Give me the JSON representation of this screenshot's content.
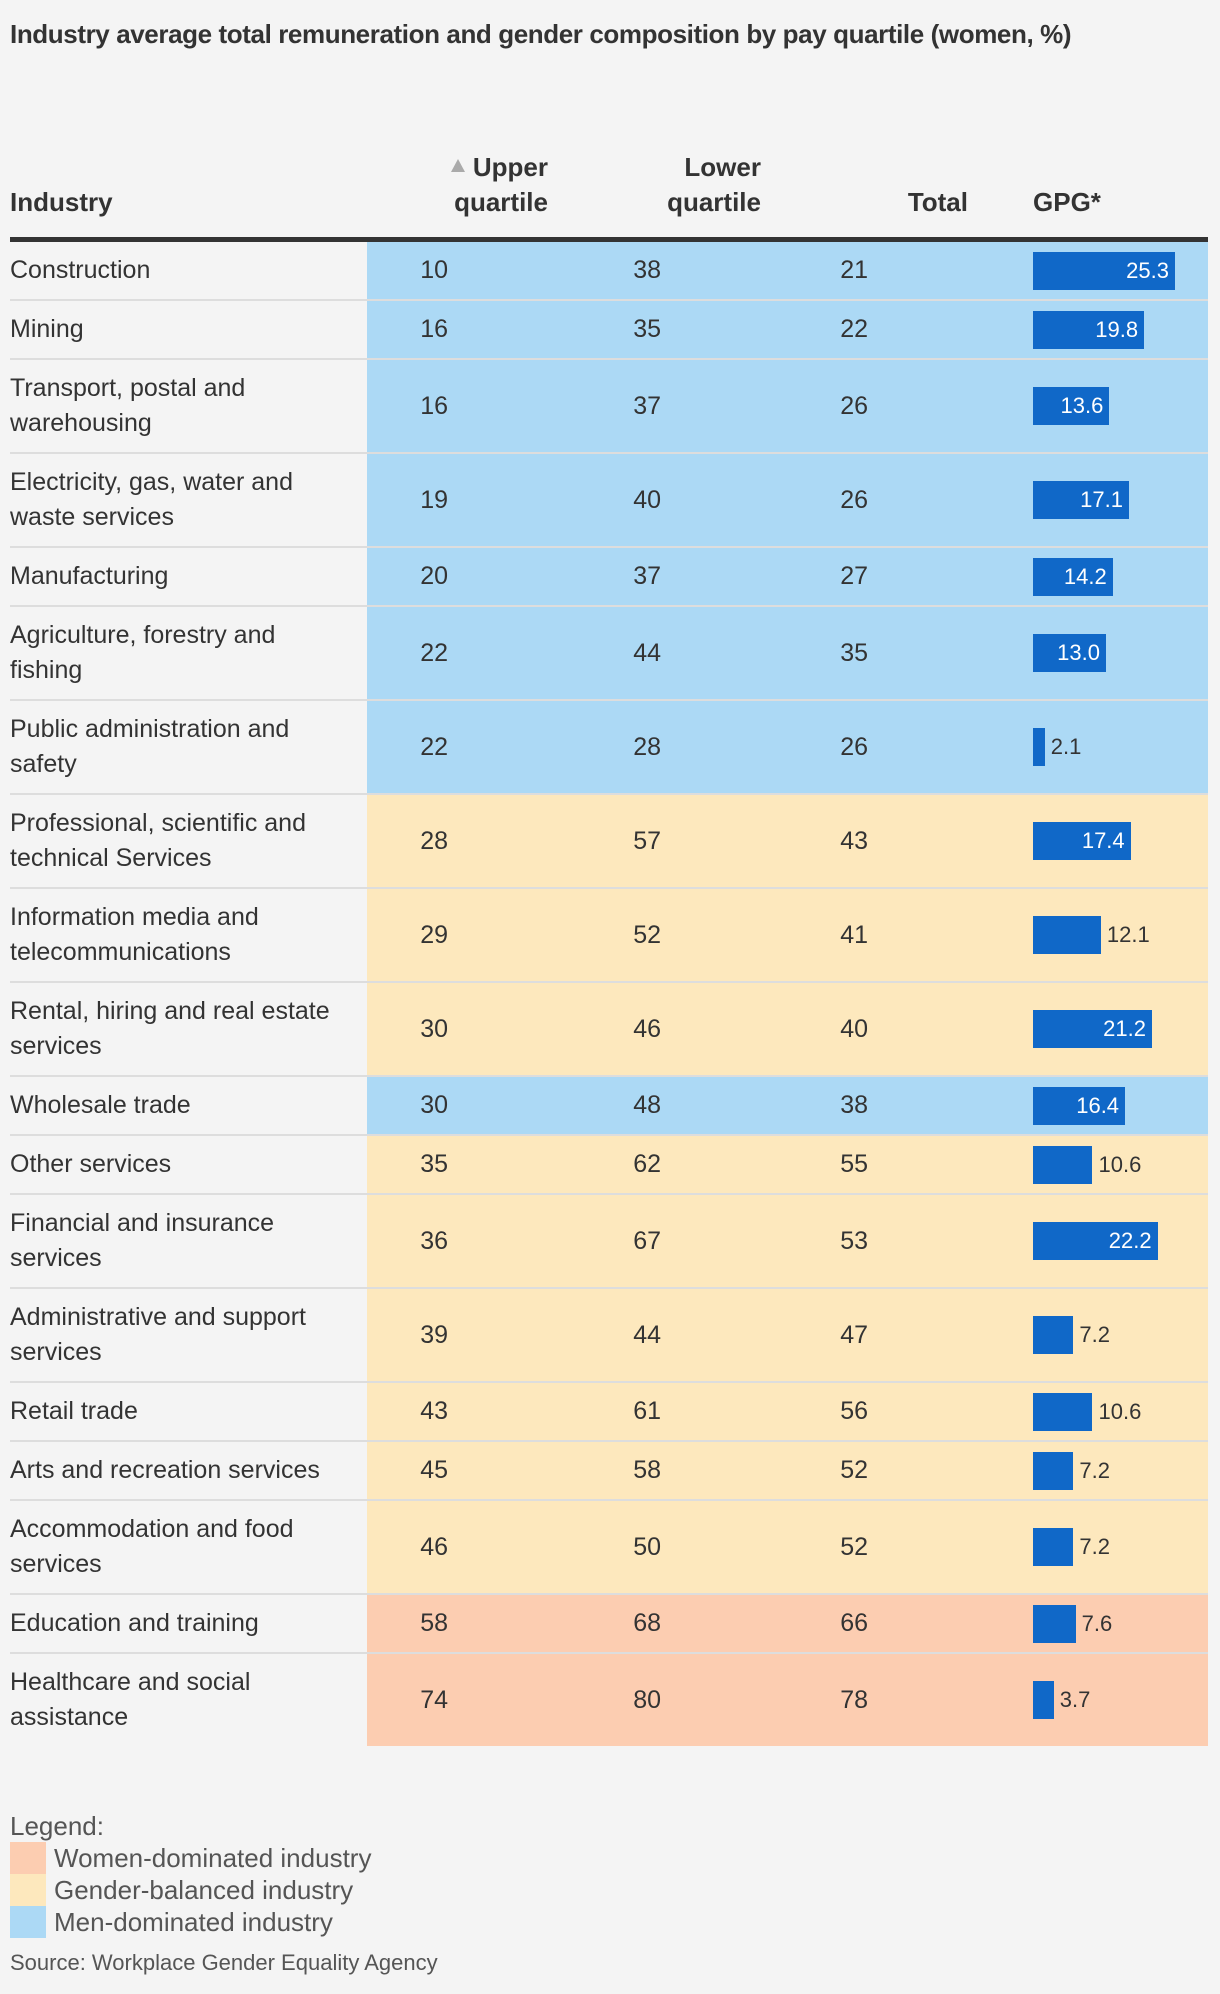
{
  "title": "Industry average total remuneration and gender composition by pay quartile (women, %)",
  "headers": {
    "industry": "Industry",
    "upper_line1": "Upper",
    "upper_line2": "quartile",
    "lower_line1": "Lower",
    "lower_line2": "quartile",
    "total": "Total",
    "gpg": "GPG*"
  },
  "sort": {
    "column": "Upper quartile",
    "direction": "ascending",
    "icon": "sort-ascending-icon"
  },
  "colors": {
    "women": "#fccdb1",
    "balanced": "#fde8bd",
    "men": "#acd9f5",
    "bar": "#1068c8"
  },
  "chart_data": {
    "type": "table",
    "title": "Industry average total remuneration and gender composition by pay quartile (women, %)",
    "columns": [
      "Industry",
      "Upper quartile",
      "Lower quartile",
      "Total",
      "GPG*"
    ],
    "gpg_bar_max": 25.3,
    "rows": [
      {
        "industry": "Construction",
        "upper": "10",
        "lower": "38",
        "total": "21",
        "gpg": "25.3",
        "category": "men"
      },
      {
        "industry": "Mining",
        "upper": "16",
        "lower": "35",
        "total": "22",
        "gpg": "19.8",
        "category": "men"
      },
      {
        "industry": "Transport, postal and warehousing",
        "upper": "16",
        "lower": "37",
        "total": "26",
        "gpg": "13.6",
        "category": "men"
      },
      {
        "industry": "Electricity, gas, water and waste services",
        "upper": "19",
        "lower": "40",
        "total": "26",
        "gpg": "17.1",
        "category": "men"
      },
      {
        "industry": "Manufacturing",
        "upper": "20",
        "lower": "37",
        "total": "27",
        "gpg": "14.2",
        "category": "men"
      },
      {
        "industry": "Agriculture, forestry and fishing",
        "upper": "22",
        "lower": "44",
        "total": "35",
        "gpg": "13.0",
        "category": "men"
      },
      {
        "industry": "Public administration and safety",
        "upper": "22",
        "lower": "28",
        "total": "26",
        "gpg": "2.1",
        "category": "men"
      },
      {
        "industry": "Professional, scientific and technical Services",
        "upper": "28",
        "lower": "57",
        "total": "43",
        "gpg": "17.4",
        "category": "balanced"
      },
      {
        "industry": "Information media and telecommunications",
        "upper": "29",
        "lower": "52",
        "total": "41",
        "gpg": "12.1",
        "category": "balanced"
      },
      {
        "industry": "Rental, hiring and real estate services",
        "upper": "30",
        "lower": "46",
        "total": "40",
        "gpg": "21.2",
        "category": "balanced"
      },
      {
        "industry": "Wholesale trade",
        "upper": "30",
        "lower": "48",
        "total": "38",
        "gpg": "16.4",
        "category": "men"
      },
      {
        "industry": "Other services",
        "upper": "35",
        "lower": "62",
        "total": "55",
        "gpg": "10.6",
        "category": "balanced"
      },
      {
        "industry": "Financial and insurance services",
        "upper": "36",
        "lower": "67",
        "total": "53",
        "gpg": "22.2",
        "category": "balanced"
      },
      {
        "industry": "Administrative and support services",
        "upper": "39",
        "lower": "44",
        "total": "47",
        "gpg": "7.2",
        "category": "balanced"
      },
      {
        "industry": "Retail trade",
        "upper": "43",
        "lower": "61",
        "total": "56",
        "gpg": "10.6",
        "category": "balanced"
      },
      {
        "industry": "Arts and recreation services",
        "upper": "45",
        "lower": "58",
        "total": "52",
        "gpg": "7.2",
        "category": "balanced"
      },
      {
        "industry": "Accommodation and food services",
        "upper": "46",
        "lower": "50",
        "total": "52",
        "gpg": "7.2",
        "category": "balanced"
      },
      {
        "industry": "Education and training",
        "upper": "58",
        "lower": "68",
        "total": "66",
        "gpg": "7.6",
        "category": "women"
      },
      {
        "industry": "Healthcare and social assistance",
        "upper": "74",
        "lower": "80",
        "total": "78",
        "gpg": "3.7",
        "category": "women"
      }
    ]
  },
  "legend": {
    "title": "Legend:",
    "items": [
      {
        "label": "Women-dominated industry",
        "key": "women"
      },
      {
        "label": "Gender-balanced industry",
        "key": "balanced"
      },
      {
        "label": "Men-dominated industry",
        "key": "men"
      }
    ]
  },
  "source": "Source: Workplace Gender Equality Agency"
}
